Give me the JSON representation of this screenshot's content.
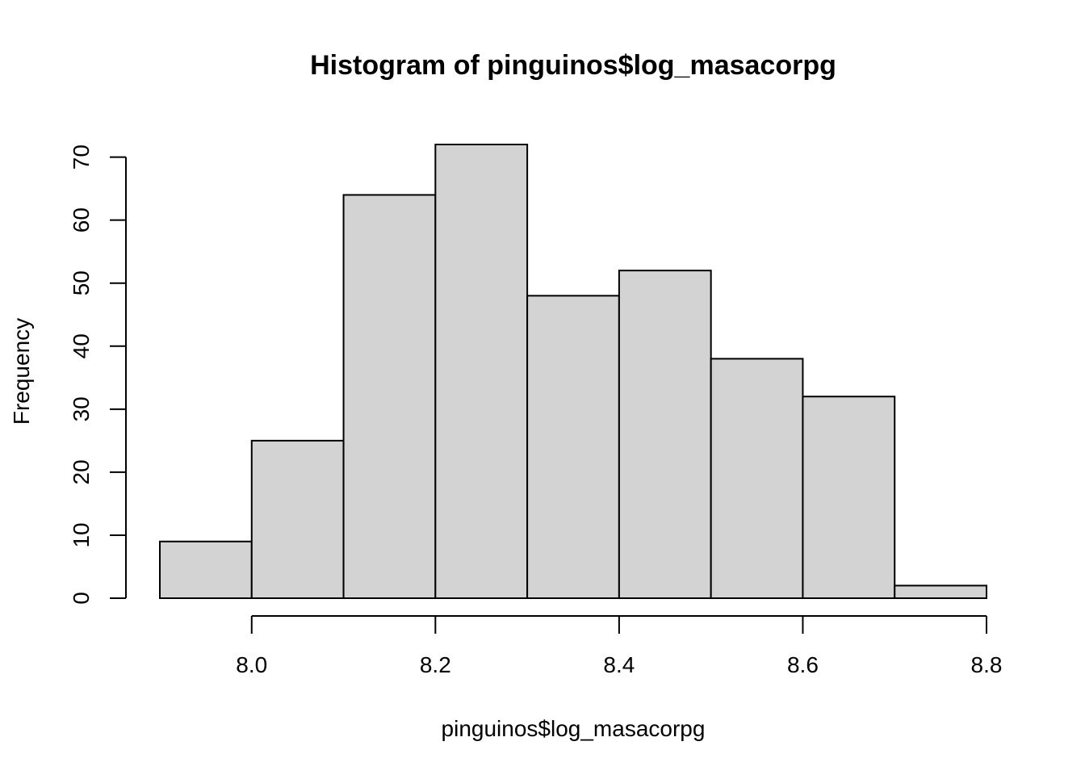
{
  "chart_data": {
    "type": "bar",
    "title": "Histogram of pinguinos$log_masacorpg",
    "xlabel": "pinguinos$log_masacorpg",
    "ylabel": "Frequency",
    "bins": [
      {
        "start": 7.9,
        "end": 8.0,
        "count": 9
      },
      {
        "start": 8.0,
        "end": 8.1,
        "count": 25
      },
      {
        "start": 8.1,
        "end": 8.2,
        "count": 64
      },
      {
        "start": 8.2,
        "end": 8.3,
        "count": 72
      },
      {
        "start": 8.3,
        "end": 8.4,
        "count": 48
      },
      {
        "start": 8.4,
        "end": 8.5,
        "count": 52
      },
      {
        "start": 8.5,
        "end": 8.6,
        "count": 38
      },
      {
        "start": 8.6,
        "end": 8.7,
        "count": 32
      },
      {
        "start": 8.7,
        "end": 8.8,
        "count": 2
      }
    ],
    "xlim": [
      7.9,
      8.8
    ],
    "ylim": [
      0,
      72
    ],
    "x_ticks": [
      8.0,
      8.2,
      8.4,
      8.6,
      8.8
    ],
    "x_tick_labels": [
      "8.0",
      "8.2",
      "8.4",
      "8.6",
      "8.8"
    ],
    "y_ticks": [
      0,
      10,
      20,
      30,
      40,
      50,
      60,
      70
    ],
    "y_tick_labels": [
      "0",
      "10",
      "20",
      "30",
      "40",
      "50",
      "60",
      "70"
    ],
    "grid": false,
    "colors": {
      "bar_fill": "#d3d3d3",
      "bar_stroke": "#000000"
    }
  }
}
